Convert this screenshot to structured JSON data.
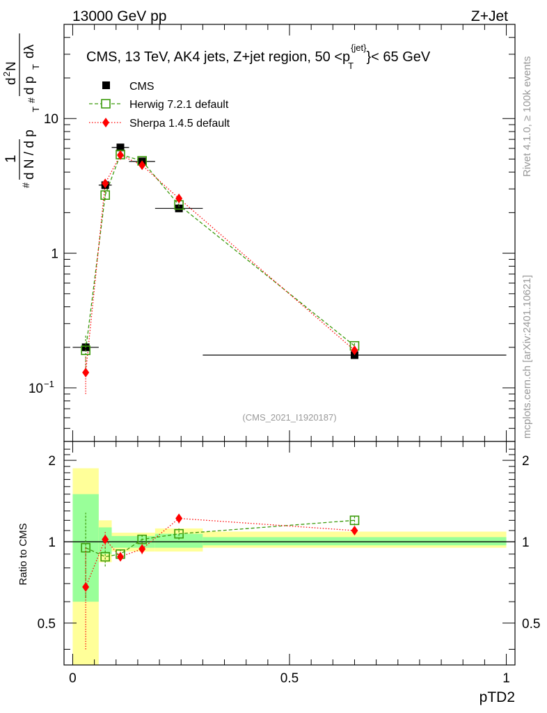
{
  "header": {
    "left_label": "13000 GeV pp",
    "right_label": "Z+Jet"
  },
  "side_labels": {
    "rivet": "Rivet 4.1.0, ≥ 100k events",
    "mcplots": "mcplots.cern.ch [arXiv:2401.10621]"
  },
  "analysis_id": "(CMS_2021_I1920187)",
  "colors": {
    "data": "#000000",
    "herwig": "#3a9a0a",
    "sherpa": "#ff0000",
    "band_inner": "#99ff99",
    "band_outer": "#ffff99"
  },
  "chart_data": [
    {
      "type": "scatter",
      "panel": "main",
      "title": "CMS, 13 TeV, AK4 jets, Z+jet region, 50 <p_T^{jet}< 65 GeV",
      "title_parts": {
        "prefix": "CMS, 13 TeV, AK4 jets, Z+jet region, 50 <",
        "p": "p",
        "sub": "T",
        "sup": "{jet}",
        "suffix": "}< 65 GeV"
      },
      "xlabel": "pTD2",
      "ylabel": "1 / dN/dp_T  d²N / dp_T dλ",
      "ylabel_parts": [
        "#",
        "1",
        "d N / d p",
        "T",
        "#",
        "d",
        "2",
        "N",
        "d p",
        "T",
        "dλ"
      ],
      "yscale": "log",
      "xlim": [
        -0.02,
        1.02
      ],
      "ylim": [
        0.04,
        50
      ],
      "y_ticks": [
        {
          "value": 0.1,
          "label": "10",
          "exp": "−1"
        },
        {
          "value": 1,
          "label": "1",
          "exp": ""
        },
        {
          "value": 10,
          "label": "10",
          "exp": ""
        }
      ],
      "legend": [
        "CMS",
        "Herwig 7.2.1 default",
        "Sherpa 1.4.5 default"
      ],
      "series": [
        {
          "name": "CMS",
          "x": [
            0.03,
            0.075,
            0.11,
            0.16,
            0.245,
            0.65
          ],
          "xerr_lo": [
            0.03,
            0.015,
            0.02,
            0.03,
            0.055,
            0.35
          ],
          "xerr_hi": [
            0.03,
            0.015,
            0.02,
            0.03,
            0.055,
            0.35
          ],
          "y": [
            0.2,
            3.2,
            6.1,
            4.8,
            2.15,
            0.175
          ],
          "yerr": [
            0.012,
            0.15,
            0.2,
            0.15,
            0.08,
            0.008
          ]
        },
        {
          "name": "Herwig 7.2.1 default",
          "x": [
            0.03,
            0.075,
            0.11,
            0.16,
            0.245,
            0.65
          ],
          "y": [
            0.19,
            2.7,
            5.4,
            4.85,
            2.28,
            0.205
          ],
          "yerr": [
            0.06,
            0.22,
            0.15,
            0.15,
            0.08,
            0.01
          ]
        },
        {
          "name": "Sherpa 1.4.5 default",
          "x": [
            0.03,
            0.075,
            0.11,
            0.16,
            0.245,
            0.65
          ],
          "y": [
            0.13,
            3.3,
            5.35,
            4.5,
            2.55,
            0.19
          ],
          "yerr": [
            0.04,
            0.22,
            0.15,
            0.12,
            0.08,
            0.008
          ]
        }
      ]
    },
    {
      "type": "scatter",
      "panel": "ratio",
      "ylabel": "Ratio to CMS",
      "xlabel": "pTD2",
      "xlim": [
        -0.02,
        1.02
      ],
      "ylim": [
        0.35,
        2.35
      ],
      "yscale": "log",
      "y_ticks": [
        0.5,
        1,
        2
      ],
      "y_tick_labels": [
        "0.5",
        "1",
        "2"
      ],
      "x_ticks": [
        0,
        0.5,
        1
      ],
      "x_tick_labels": [
        "0",
        "0.5",
        "1"
      ],
      "bands": [
        {
          "x0": 0.0,
          "x1": 0.06,
          "inner": [
            0.6,
            1.5
          ],
          "outer": [
            0.35,
            1.87
          ]
        },
        {
          "x0": 0.06,
          "x1": 0.09,
          "inner": [
            0.9,
            1.13
          ],
          "outer": [
            0.84,
            1.2
          ]
        },
        {
          "x0": 0.09,
          "x1": 0.19,
          "inner": [
            0.95,
            1.05
          ],
          "outer": [
            0.92,
            1.08
          ]
        },
        {
          "x0": 0.19,
          "x1": 0.3,
          "inner": [
            0.95,
            1.07
          ],
          "outer": [
            0.92,
            1.12
          ]
        },
        {
          "x0": 0.3,
          "x1": 1.0,
          "inner": [
            0.97,
            1.04
          ],
          "outer": [
            0.95,
            1.09
          ]
        }
      ],
      "series": [
        {
          "name": "Herwig 7.2.1 default",
          "x": [
            0.03,
            0.075,
            0.11,
            0.16,
            0.245,
            0.65
          ],
          "y": [
            0.95,
            0.88,
            0.9,
            1.02,
            1.07,
            1.2
          ],
          "yerr": [
            0.33,
            0.07,
            0.03,
            0.04,
            0.05,
            0.05
          ]
        },
        {
          "name": "Sherpa 1.4.5 default",
          "x": [
            0.03,
            0.075,
            0.11,
            0.16,
            0.245,
            0.65
          ],
          "y": [
            0.68,
            1.02,
            0.88,
            0.94,
            1.22,
            1.1
          ],
          "yerr": [
            0.28,
            0.07,
            0.03,
            0.04,
            0.05,
            0.04
          ]
        }
      ]
    }
  ]
}
